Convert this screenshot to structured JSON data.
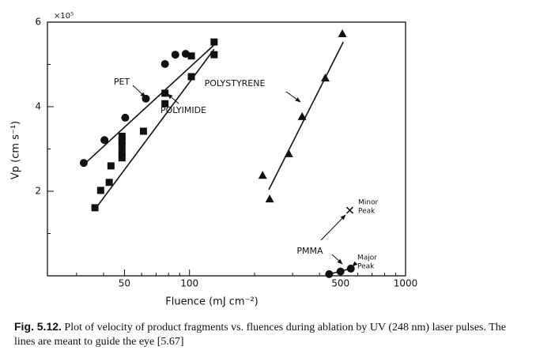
{
  "chart_data": {
    "type": "scatter",
    "log_x": true,
    "x_label": "Fluence (mJ cm⁻²)",
    "y_label": "Vp (cm s⁻¹)",
    "y_multiplier": "×10⁵",
    "xlim": [
      22,
      1000
    ],
    "ylim": [
      0,
      6
    ],
    "xticks": [
      50,
      100,
      500,
      1000
    ],
    "yticks": [
      2,
      4,
      6
    ],
    "xminorticks": [
      30,
      40,
      60,
      70,
      80,
      90,
      200,
      300,
      400,
      600,
      700,
      800,
      900
    ],
    "yminorticks": [
      1,
      3,
      5
    ],
    "series": [
      {
        "name": "PET",
        "marker": "circle",
        "color": "#111",
        "x": [
          32.4,
          40.4,
          50.4,
          62.8,
          77,
          86,
          96
        ],
        "values": [
          2.67,
          3.21,
          3.74,
          4.19,
          5.01,
          5.23,
          5.25
        ],
        "line_x": [
          32.4,
          130
        ],
        "line_y": [
          2.63,
          5.46
        ]
      },
      {
        "name": "POLYIMIDE",
        "marker": "square",
        "color": "#111",
        "x": [
          36.5,
          38.8,
          42.5,
          43.3,
          48.7,
          48.7,
          48.7,
          48.7,
          48.7,
          61.2,
          77,
          77,
          102,
          102,
          130,
          130
        ],
        "values": [
          1.61,
          2.02,
          2.21,
          2.6,
          2.79,
          2.92,
          3.07,
          3.2,
          3.3,
          3.42,
          4.07,
          4.32,
          4.71,
          5.2,
          5.23,
          5.53
        ],
        "line_x": [
          36.5,
          130
        ],
        "line_y": [
          1.57,
          5.36
        ]
      },
      {
        "name": "POLYSTYRENE",
        "marker": "triangle",
        "color": "#111",
        "x": [
          218,
          235,
          288,
          332,
          425,
          510
        ],
        "values": [
          2.37,
          1.81,
          2.88,
          3.76,
          4.67,
          5.72
        ],
        "line_x": [
          233,
          515
        ],
        "line_y": [
          2.04,
          5.53
        ]
      },
      {
        "name": "PMMA",
        "marker": "circle",
        "color": "#111",
        "x": [
          443,
          500,
          558
        ],
        "values": [
          0.04,
          0.1,
          0.17
        ],
        "line_x": [
          443,
          558
        ],
        "line_y": [
          0.04,
          0.17
        ],
        "peak_label": [
          "Major",
          "Peak"
        ]
      }
    ],
    "minor_peak": {
      "marker": "cross",
      "x": [
        552
      ],
      "values": [
        1.55
      ],
      "label": [
        "Minor",
        "Peak"
      ]
    }
  },
  "caption_label": "Fig. 5.12.",
  "caption": "Plot of velocity of product fragments vs. fluences during ablation by UV (248 nm) laser pulses. The lines are meant to guide the eye [5.67]"
}
